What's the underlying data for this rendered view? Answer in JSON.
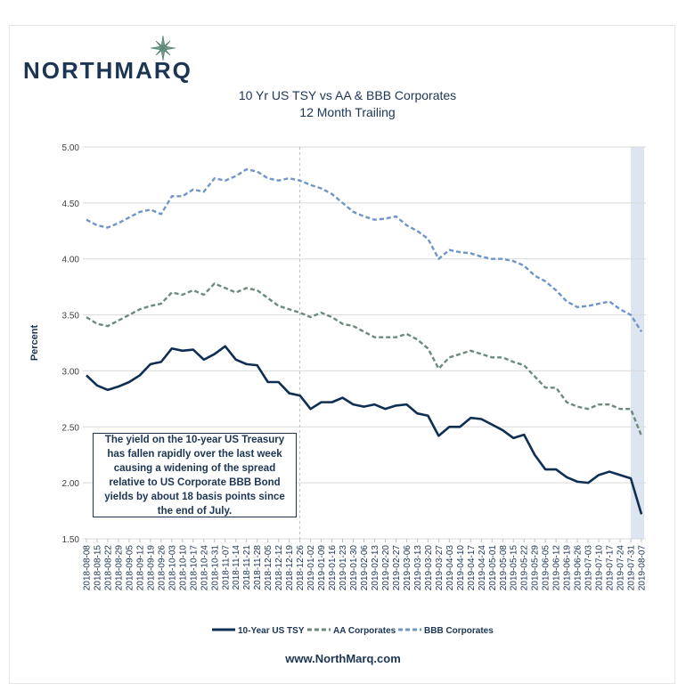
{
  "logo": {
    "text": "NorthMarq"
  },
  "footer": {
    "url": "www.NorthMarq.com"
  },
  "annotation": "The yield on the 10-year US Treasury has fallen rapidly over the last week causing a widening of the spread relative to US Corporate BBB Bond yields by about 18 basis points since the end of July.",
  "chart_data": {
    "type": "line",
    "title": "10 Yr US TSY vs AA & BBB Corporates",
    "subtitle": "12 Month Trailing",
    "xlabel": "",
    "ylabel": "Percent",
    "ylim": [
      1.5,
      5.0
    ],
    "yticks": [
      "5.00",
      "4.50",
      "4.00",
      "3.50",
      "3.00",
      "2.50",
      "2.00",
      "1.50"
    ],
    "grid": true,
    "legend": "bottom",
    "x": [
      "2018-08-08",
      "2018-08-15",
      "2018-08-22",
      "2018-08-29",
      "2018-09-05",
      "2018-09-12",
      "2018-09-19",
      "2018-09-26",
      "2018-10-03",
      "2018-10-10",
      "2018-10-17",
      "2018-10-24",
      "2018-10-31",
      "2018-11-07",
      "2018-11-14",
      "2018-11-21",
      "2018-11-28",
      "2018-12-05",
      "2018-12-12",
      "2018-12-19",
      "2018-12-26",
      "2019-01-02",
      "2019-01-09",
      "2019-01-16",
      "2019-01-23",
      "2019-01-30",
      "2019-02-06",
      "2019-02-13",
      "2019-02-20",
      "2019-02-27",
      "2019-03-06",
      "2019-03-13",
      "2019-03-20",
      "2019-03-27",
      "2019-04-03",
      "2019-04-10",
      "2019-04-17",
      "2019-04-24",
      "2019-05-01",
      "2019-05-08",
      "2019-05-15",
      "2019-05-22",
      "2019-05-29",
      "2019-06-05",
      "2019-06-12",
      "2019-06-19",
      "2019-06-26",
      "2019-07-03",
      "2019-07-10",
      "2019-07-17",
      "2019-07-24",
      "2019-07-31",
      "2019-08-07"
    ],
    "vertical_marker": "2018-12-26",
    "shaded_range": [
      "2019-07-31",
      "2019-08-07"
    ],
    "series": [
      {
        "name": "10-Year US TSY",
        "color": "#0f2f52",
        "style": "solid",
        "values": [
          2.96,
          2.87,
          2.83,
          2.86,
          2.9,
          2.96,
          3.06,
          3.08,
          3.2,
          3.18,
          3.19,
          3.1,
          3.15,
          3.22,
          3.1,
          3.06,
          3.05,
          2.9,
          2.9,
          2.8,
          2.78,
          2.66,
          2.72,
          2.72,
          2.76,
          2.7,
          2.68,
          2.7,
          2.66,
          2.69,
          2.7,
          2.62,
          2.6,
          2.42,
          2.5,
          2.5,
          2.58,
          2.57,
          2.52,
          2.47,
          2.4,
          2.43,
          2.25,
          2.12,
          2.12,
          2.05,
          2.01,
          2.0,
          2.07,
          2.1,
          2.07,
          2.04,
          1.72
        ]
      },
      {
        "name": "AA Corporates",
        "color": "#6b8a7a",
        "style": "dashed",
        "values": [
          3.48,
          3.42,
          3.4,
          3.45,
          3.5,
          3.55,
          3.58,
          3.6,
          3.7,
          3.68,
          3.72,
          3.68,
          3.78,
          3.74,
          3.7,
          3.74,
          3.72,
          3.65,
          3.58,
          3.55,
          3.52,
          3.48,
          3.52,
          3.48,
          3.42,
          3.4,
          3.35,
          3.3,
          3.3,
          3.3,
          3.33,
          3.28,
          3.2,
          3.02,
          3.12,
          3.15,
          3.18,
          3.15,
          3.12,
          3.12,
          3.08,
          3.05,
          2.95,
          2.85,
          2.85,
          2.72,
          2.68,
          2.66,
          2.7,
          2.7,
          2.66,
          2.66,
          2.42
        ]
      },
      {
        "name": "BBB Corporates",
        "color": "#6f95c9",
        "style": "dashed",
        "values": [
          4.35,
          4.3,
          4.28,
          4.32,
          4.37,
          4.42,
          4.44,
          4.4,
          4.56,
          4.56,
          4.62,
          4.6,
          4.72,
          4.7,
          4.74,
          4.8,
          4.78,
          4.72,
          4.7,
          4.72,
          4.7,
          4.66,
          4.63,
          4.58,
          4.5,
          4.42,
          4.38,
          4.35,
          4.36,
          4.38,
          4.3,
          4.25,
          4.18,
          4.0,
          4.08,
          4.06,
          4.05,
          4.02,
          4.0,
          4.0,
          3.98,
          3.94,
          3.85,
          3.8,
          3.72,
          3.62,
          3.57,
          3.58,
          3.6,
          3.62,
          3.55,
          3.5,
          3.35
        ]
      }
    ]
  }
}
